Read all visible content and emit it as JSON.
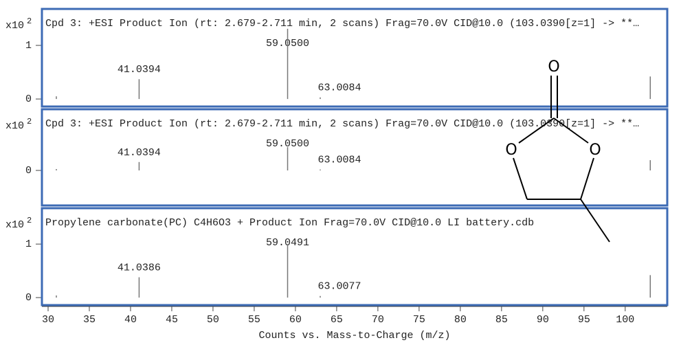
{
  "chart_data": [
    {
      "type": "spectrum",
      "title": "Cpd 3: +ESI Product Ion (rt: 2.679-2.711 min, 2 scans) Frag=70.0V CID@10.0 (103.0390[z=1] -> **…",
      "y_label": "x10",
      "y_label_exponent": "2",
      "label_color": "#2b2b9e",
      "color": "#777777",
      "x": [
        31,
        41.0394,
        59.05,
        63.0084,
        103.04
      ],
      "x_labels": [
        null,
        "41.0394",
        "59.0500",
        "63.0084",
        null
      ],
      "values": [
        0.05,
        0.37,
        1.31,
        0.03,
        0.42
      ],
      "xlim": [
        29.25,
        105.1
      ],
      "ylim": [
        -0.14,
        1.68
      ],
      "yticks": [
        0,
        1
      ]
    },
    {
      "type": "spectrum",
      "title": "Cpd 3: +ESI Product Ion (rt: 2.679-2.711 min, 2 scans) Frag=70.0V CID@10.0 (103.0390[z=1] -> **…",
      "y_label": "x10",
      "y_label_exponent": "2",
      "label_color": "#2b2b9e",
      "color": "#777777",
      "x": [
        31,
        41.0394,
        59.05,
        63.0084,
        103.04
      ],
      "x_labels": [
        null,
        "41.0394",
        "59.0500",
        "63.0084",
        null
      ],
      "values": [
        0.03,
        0.18,
        0.5,
        0.02,
        0.22
      ],
      "xlim": [
        29.25,
        105.1
      ],
      "ylim": [
        -0.75,
        1.31
      ],
      "yticks": [
        0
      ]
    },
    {
      "type": "spectrum",
      "title": "Propylene carbonate(PC) C4H6O3 + Product Ion Frag=70.0V CID@10.0 LI battery.cdb",
      "y_label": "x10",
      "y_label_exponent": "2",
      "label_color": "#222222",
      "color": "#777777",
      "x": [
        31,
        41.0386,
        59.0491,
        63.0077,
        103.04
      ],
      "x_labels": [
        null,
        "41.0386",
        "59.0491",
        "63.0077",
        null
      ],
      "values": [
        0.04,
        0.38,
        1.0,
        0.03,
        0.42
      ],
      "xlim": [
        29.25,
        105.1
      ],
      "ylim": [
        -0.14,
        1.67
      ],
      "yticks": [
        0,
        1
      ],
      "xticks": [
        30,
        35,
        40,
        45,
        50,
        55,
        60,
        65,
        70,
        75,
        80,
        85,
        90,
        95,
        100
      ],
      "x_label": "Counts vs. Mass-to-Charge (m/z)"
    }
  ],
  "molecule": {
    "atoms": [
      "O",
      "O",
      "O"
    ]
  }
}
